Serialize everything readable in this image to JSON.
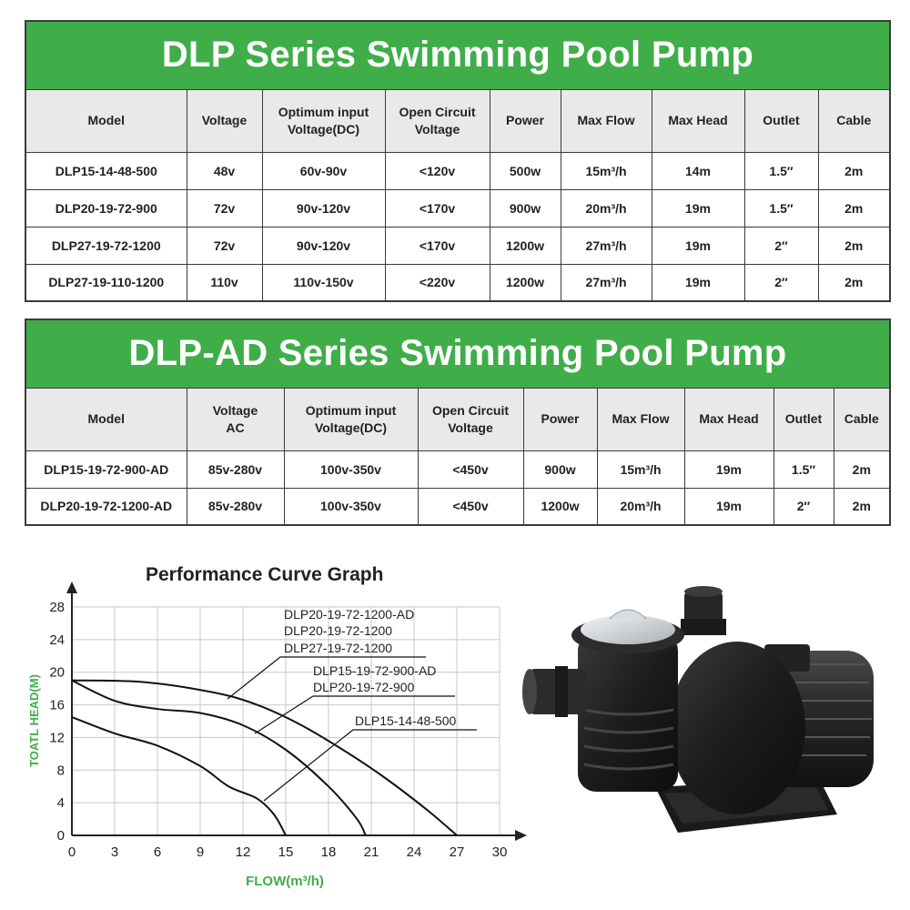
{
  "table1": {
    "title": "DLP Series Swimming Pool Pump",
    "headers": [
      "Model",
      "Voltage",
      "Optimum input\nVoltage(DC)",
      "Open Circuit\nVoltage",
      "Power",
      "Max Flow",
      "Max Head",
      "Outlet",
      "Cable"
    ],
    "rows": [
      [
        "DLP15-14-48-500",
        "48v",
        "60v-90v",
        "<120v",
        "500w",
        "15m³/h",
        "14m",
        "1.5″",
        "2m"
      ],
      [
        "DLP20-19-72-900",
        "72v",
        "90v-120v",
        "<170v",
        "900w",
        "20m³/h",
        "19m",
        "1.5″",
        "2m"
      ],
      [
        "DLP27-19-72-1200",
        "72v",
        "90v-120v",
        "<170v",
        "1200w",
        "27m³/h",
        "19m",
        "2″",
        "2m"
      ],
      [
        "DLP27-19-110-1200",
        "110v",
        "110v-150v",
        "<220v",
        "1200w",
        "27m³/h",
        "19m",
        "2″",
        "2m"
      ]
    ]
  },
  "table2": {
    "title": "DLP-AD Series Swimming Pool Pump",
    "headers": [
      "Model",
      "Voltage\nAC",
      "Optimum input\nVoltage(DC)",
      "Open Circuit\nVoltage",
      "Power",
      "Max Flow",
      "Max Head",
      "Outlet",
      "Cable"
    ],
    "rows": [
      [
        "DLP15-19-72-900-AD",
        "85v-280v",
        "100v-350v",
        "<450v",
        "900w",
        "15m³/h",
        "19m",
        "1.5″",
        "2m"
      ],
      [
        "DLP20-19-72-1200-AD",
        "85v-280v",
        "100v-350v",
        "<450v",
        "1200w",
        "20m³/h",
        "19m",
        "2″",
        "2m"
      ]
    ]
  },
  "chart": {
    "title": "Performance Curve Graph",
    "axis_color": "#3fae49",
    "chart_data": {
      "type": "line",
      "title": "Performance Curve Graph",
      "xlabel": "FLOW(m³/h)",
      "ylabel": "TOATL HEAD(M)",
      "xlim": [
        0,
        30
      ],
      "ylim": [
        0,
        28
      ],
      "xticks": [
        0,
        3,
        6,
        9,
        12,
        15,
        18,
        21,
        24,
        27,
        30
      ],
      "yticks": [
        0,
        4,
        8,
        12,
        16,
        20,
        24,
        28
      ],
      "grid": true,
      "series": [
        {
          "points": [
            [
              0,
              19
            ],
            [
              5,
              18.8
            ],
            [
              10,
              17.5
            ],
            [
              13,
              16
            ],
            [
              16,
              13.6
            ],
            [
              19,
              10.5
            ],
            [
              22,
              7
            ],
            [
              25,
              3
            ],
            [
              27,
              0
            ]
          ]
        },
        {
          "points": [
            [
              0,
              19
            ],
            [
              3,
              16.5
            ],
            [
              6,
              15.5
            ],
            [
              9,
              15
            ],
            [
              12,
              13.5
            ],
            [
              15,
              10.5
            ],
            [
              18,
              6
            ],
            [
              20,
              2
            ],
            [
              20.6,
              0
            ]
          ]
        },
        {
          "points": [
            [
              0,
              14.5
            ],
            [
              3,
              12.5
            ],
            [
              6,
              11
            ],
            [
              9,
              8.5
            ],
            [
              11,
              6
            ],
            [
              13,
              4.5
            ],
            [
              14.2,
              2.5
            ],
            [
              15,
              0
            ]
          ]
        }
      ],
      "annotations": [
        {
          "label": "DLP20-19-72-1200-AD"
        },
        {
          "label": "DLP20-19-72-1200"
        },
        {
          "label": "DLP27-19-72-1200"
        },
        {
          "label": "DLP15-19-72-900-AD"
        },
        {
          "label": "DLP20-19-72-900"
        },
        {
          "label": "DLP15-14-48-500"
        }
      ]
    }
  }
}
